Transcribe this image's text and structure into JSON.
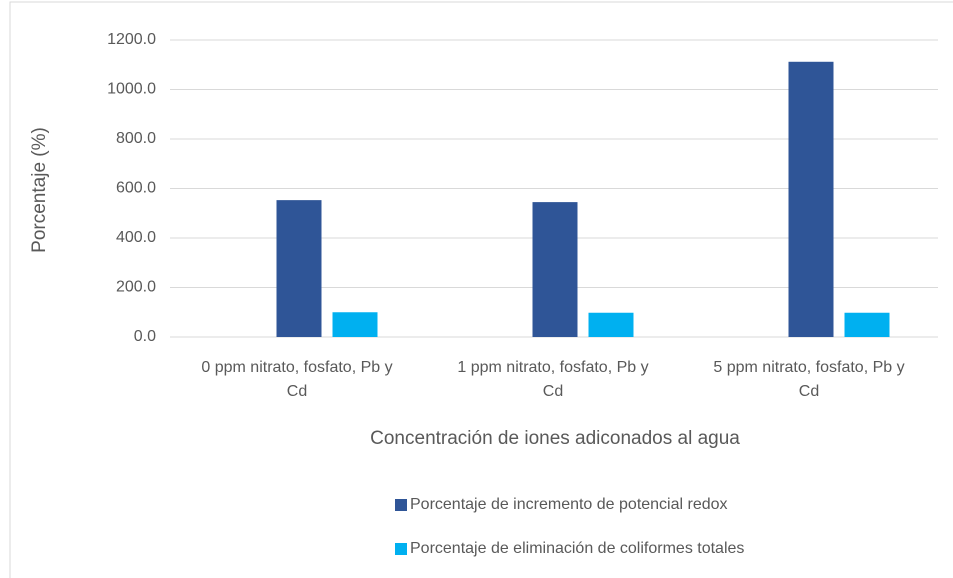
{
  "chart_data": {
    "type": "bar",
    "categories": [
      "0 ppm nitrato, fosfato, Pb y Cd",
      "1 ppm nitrato, fosfato, Pb y Cd",
      "5 ppm nitrato, fosfato, Pb y Cd"
    ],
    "series": [
      {
        "name": "Porcentaje de incremento de potencial redox",
        "color": "#2f5597",
        "values": [
          553,
          545,
          1112
        ]
      },
      {
        "name": "Porcentaje de eliminación de coliformes totales",
        "color": "#00b0f0",
        "values": [
          100,
          98,
          98
        ]
      }
    ],
    "ylim": [
      0,
      1200
    ],
    "yticks": [
      {
        "value": 0,
        "label": "0.0"
      },
      {
        "value": 200,
        "label": "200.0"
      },
      {
        "value": 400,
        "label": "400.0"
      },
      {
        "value": 600,
        "label": "600.0"
      },
      {
        "value": 800,
        "label": "800.0"
      },
      {
        "value": 1000,
        "label": "1000.0"
      },
      {
        "value": 1200,
        "label": "1200.0"
      }
    ],
    "xlabel": "Concentración de iones  adiconados al agua",
    "ylabel": "Porcentaje (%)",
    "grid": true,
    "legend": "bottom"
  }
}
